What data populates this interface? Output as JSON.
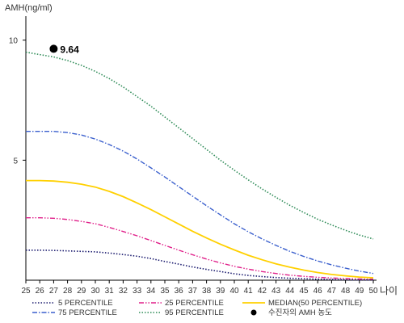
{
  "chart_data": {
    "type": "line",
    "ylabel": "AMH(ng/ml)",
    "xlabel": "나이",
    "xlim": [
      25,
      50
    ],
    "ylim": [
      0,
      11
    ],
    "x_ticks": [
      "25",
      "26",
      "27",
      "28",
      "29",
      "30",
      "31",
      "32",
      "33",
      "34",
      "35",
      "36",
      "37",
      "38",
      "39",
      "40",
      "41",
      "42",
      "43",
      "44",
      "45",
      "46",
      "47",
      "48",
      "49",
      "50"
    ],
    "y_ticks": [
      "5",
      "10"
    ],
    "grid": false,
    "legend_position": "bottom",
    "x": [
      25,
      26,
      27,
      28,
      29,
      30,
      31,
      32,
      33,
      34,
      35,
      36,
      37,
      38,
      39,
      40,
      41,
      42,
      43,
      44,
      45,
      46,
      47,
      48,
      49,
      50
    ],
    "series": [
      {
        "name": "5 PERCENTILE",
        "color": "#1a1a6e",
        "style": "dotted",
        "values": [
          1.25,
          1.25,
          1.24,
          1.22,
          1.2,
          1.18,
          1.13,
          1.07,
          1.0,
          0.9,
          0.78,
          0.67,
          0.55,
          0.45,
          0.36,
          0.27,
          0.2,
          0.15,
          0.11,
          0.08,
          0.06,
          0.04,
          0.03,
          0.02,
          0.01,
          0.01
        ]
      },
      {
        "name": "25 PERCENTILE",
        "color": "#e0208a",
        "style": "dash-dot-dot",
        "values": [
          2.6,
          2.6,
          2.58,
          2.53,
          2.45,
          2.35,
          2.2,
          2.03,
          1.85,
          1.65,
          1.45,
          1.25,
          1.06,
          0.88,
          0.72,
          0.58,
          0.46,
          0.36,
          0.28,
          0.21,
          0.16,
          0.12,
          0.09,
          0.07,
          0.05,
          0.04
        ]
      },
      {
        "name": "75 PERCENTILE",
        "color": "#3a5fcd",
        "style": "dash-dot",
        "values": [
          6.2,
          6.2,
          6.2,
          6.15,
          6.05,
          5.88,
          5.65,
          5.38,
          5.05,
          4.68,
          4.3,
          3.9,
          3.5,
          3.1,
          2.72,
          2.35,
          2.02,
          1.72,
          1.45,
          1.2,
          0.99,
          0.8,
          0.64,
          0.5,
          0.38,
          0.28
        ]
      },
      {
        "name": "95 PERCENTILE",
        "color": "#2e8b57",
        "style": "dotted",
        "values": [
          9.5,
          9.4,
          9.3,
          9.15,
          8.95,
          8.7,
          8.4,
          8.05,
          7.65,
          7.25,
          6.8,
          6.35,
          5.9,
          5.45,
          5.0,
          4.58,
          4.18,
          3.8,
          3.45,
          3.12,
          2.82,
          2.54,
          2.3,
          2.08,
          1.88,
          1.72
        ]
      },
      {
        "name": "MEDIAN(50 PERCENTILE)",
        "color": "#ffd000",
        "style": "solid",
        "values": [
          4.15,
          4.15,
          4.13,
          4.08,
          4.0,
          3.88,
          3.7,
          3.48,
          3.22,
          2.94,
          2.64,
          2.34,
          2.04,
          1.76,
          1.5,
          1.26,
          1.04,
          0.85,
          0.68,
          0.54,
          0.42,
          0.32,
          0.24,
          0.18,
          0.13,
          0.1
        ]
      }
    ],
    "marker": {
      "name": "수진자의 AMH 농도",
      "x": 27,
      "y": 9.64,
      "label": "9.64",
      "color": "#000000"
    }
  }
}
